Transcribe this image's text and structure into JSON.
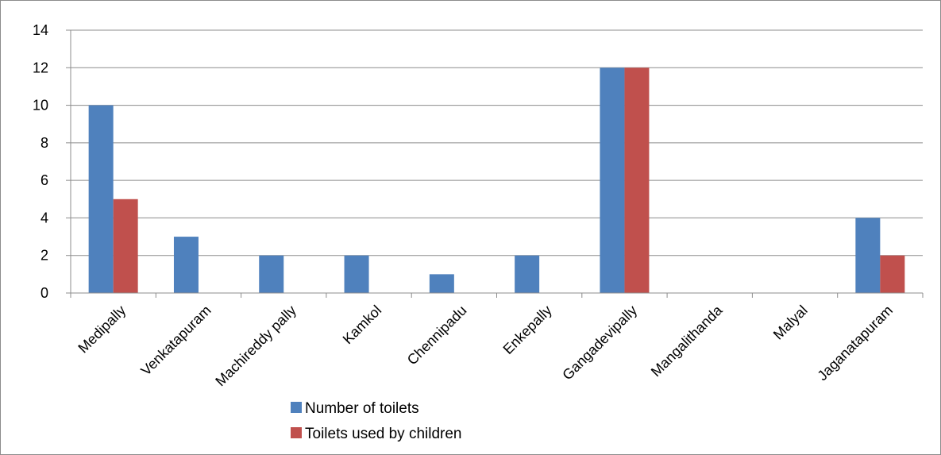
{
  "chart_data": {
    "type": "bar",
    "title": "",
    "xlabel": "",
    "ylabel": "",
    "categories": [
      "Medipally",
      "Venkatapuram",
      "Machireddy pally",
      "Kamkol",
      "Chennipadu",
      "Enkepally",
      "Gangadevipally",
      "Mangalithanda",
      "Malyal",
      "Jaganatapuram"
    ],
    "series": [
      {
        "name": "Number of toilets",
        "color": "#4F81BD",
        "values": [
          10,
          3,
          2,
          2,
          1,
          2,
          12,
          0,
          0,
          4
        ]
      },
      {
        "name": "Toilets used by children",
        "color": "#C0504D",
        "values": [
          5,
          0,
          0,
          0,
          0,
          0,
          12,
          0,
          0,
          2
        ]
      }
    ],
    "ylim": [
      0,
      14
    ],
    "yticks": [
      0,
      2,
      4,
      6,
      8,
      10,
      12,
      14
    ],
    "grid": true,
    "legend_position": "bottom"
  }
}
